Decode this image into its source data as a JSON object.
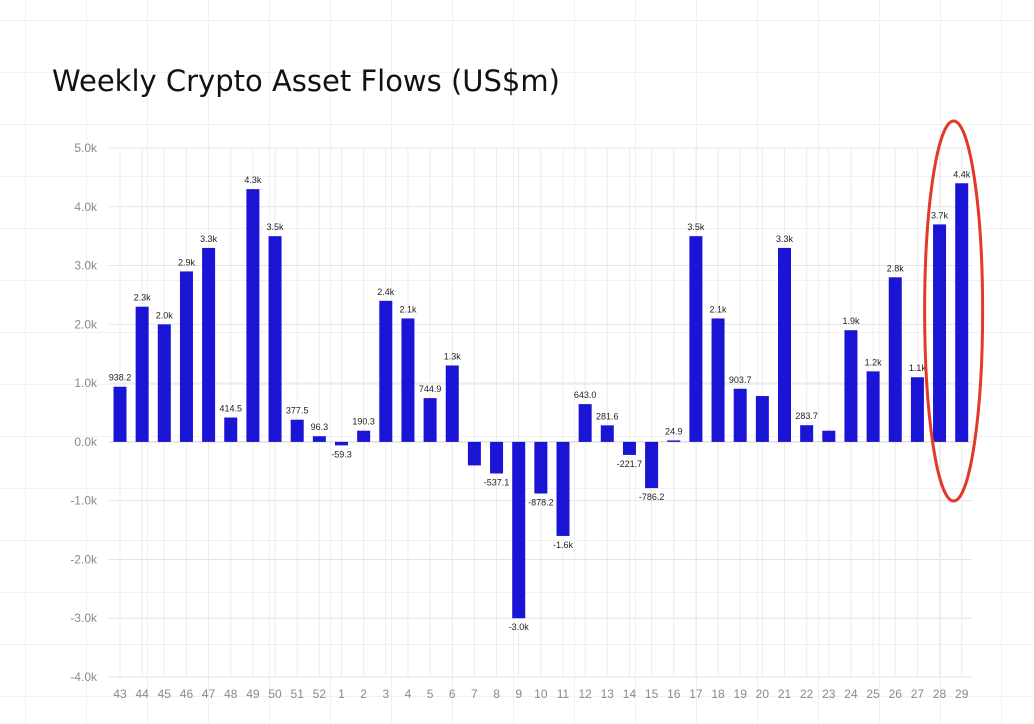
{
  "chart_data": {
    "type": "bar",
    "title": "Weekly Crypto Asset Flows (US$m)",
    "xlabel": "",
    "ylabel": "",
    "ylim": [
      -4000,
      5000
    ],
    "yticks": [
      "5.0k",
      "4.0k",
      "3.0k",
      "2.0k",
      "1.0k",
      "0.0k",
      "-1.0k",
      "-2.0k",
      "-3.0k",
      "-4.0k"
    ],
    "grid": true,
    "bar_color": "#1a14d4",
    "highlight_color": "#e2392a",
    "highlighted_categories": [
      "28",
      "29"
    ],
    "categories": [
      "43",
      "44",
      "45",
      "46",
      "47",
      "48",
      "49",
      "50",
      "51",
      "52",
      "1",
      "2",
      "3",
      "4",
      "5",
      "6",
      "7",
      "8",
      "9",
      "10",
      "11",
      "12",
      "13",
      "14",
      "15",
      "16",
      "17",
      "18",
      "19",
      "20",
      "21",
      "22",
      "23",
      "24",
      "25",
      "26",
      "27",
      "28",
      "29"
    ],
    "values": [
      938.2,
      2300,
      2000,
      2900,
      3300,
      414.5,
      4300,
      3500,
      377.5,
      96.3,
      -59.3,
      190.3,
      2400,
      2100,
      744.9,
      1300,
      -400,
      -537.1,
      -3000,
      -878.2,
      -1600,
      643.0,
      281.6,
      -221.7,
      -786.2,
      24.9,
      3500,
      2100,
      903.7,
      780,
      3300,
      283.7,
      190,
      1900,
      1200,
      2800,
      1100,
      3700,
      4400
    ],
    "data_labels": [
      "938.2",
      "2.3k",
      "2.0k",
      "2.9k",
      "3.3k",
      "414.5",
      "4.3k",
      "3.5k",
      "377.5",
      "96.3",
      "-59.3",
      "190.3",
      "2.4k",
      "2.1k",
      "744.9",
      "1.3k",
      "",
      "-537.1",
      "-3.0k",
      "-878.2",
      "-1.6k",
      "643.0",
      "281.6",
      "-221.7",
      "-786.2",
      "24.9",
      "3.5k",
      "2.1k",
      "903.7",
      "",
      "3.3k",
      "283.7",
      "",
      "1.9k",
      "1.2k",
      "2.8k",
      "1.1k",
      "3.7k",
      "4.4k"
    ]
  }
}
